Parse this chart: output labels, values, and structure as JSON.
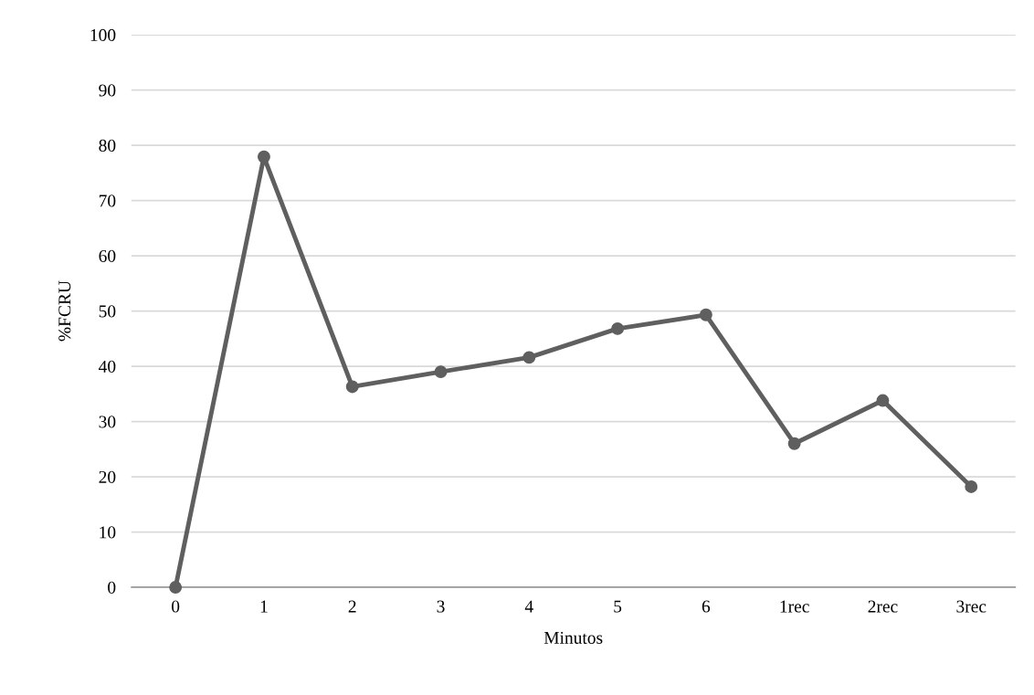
{
  "chart_data": {
    "type": "line",
    "xlabel": "Minutos",
    "ylabel": "%FCRU",
    "categories": [
      "0",
      "1",
      "2",
      "3",
      "4",
      "5",
      "6",
      "1rec",
      "2rec",
      "3rec"
    ],
    "series": [
      {
        "color": "#5f5f5f",
        "values": [
          0,
          77.9,
          36.3,
          39.0,
          41.6,
          46.8,
          49.3,
          26.0,
          33.8,
          18.2
        ]
      }
    ],
    "ylim": [
      0,
      100
    ],
    "yticks": [
      0,
      10,
      20,
      30,
      40,
      50,
      60,
      70,
      80,
      90,
      100
    ],
    "grid": "y",
    "marker": "circle",
    "line_style": "solid"
  }
}
